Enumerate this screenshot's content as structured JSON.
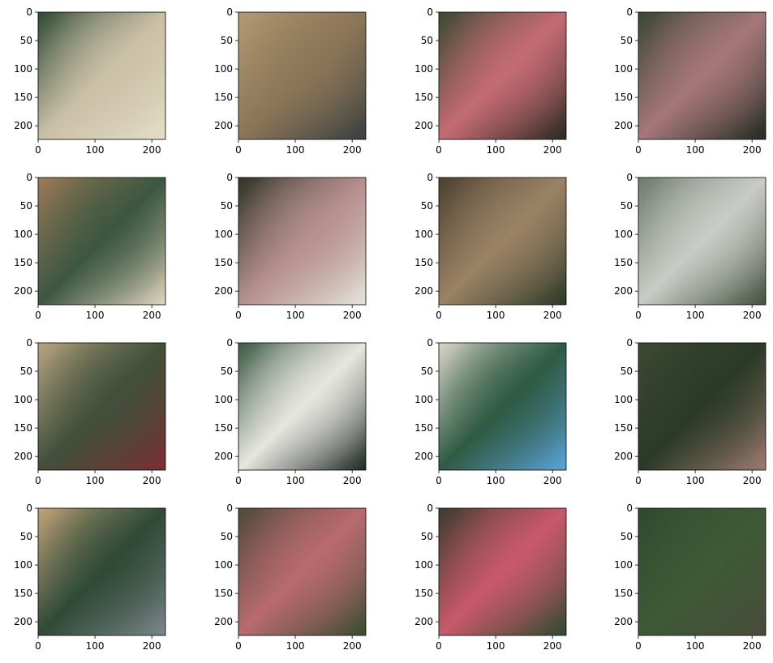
{
  "figure": {
    "title": "",
    "rows": 4,
    "cols": 4
  },
  "chart_data": {
    "type": "image-grid",
    "xlim": [
      0,
      224
    ],
    "ylim": [
      224,
      0
    ],
    "x_ticks": [
      0,
      100,
      200
    ],
    "x_tick_labels": [
      "0",
      "100",
      "200"
    ],
    "y_ticks": [
      0,
      50,
      100,
      150,
      200
    ],
    "y_tick_labels": [
      "0",
      "50",
      "100",
      "150",
      "200"
    ],
    "grid": false,
    "panels": [
      {
        "id": "r0c0",
        "colors": [
          "#2f4a34",
          "#c9c0a6",
          "#e6ddc7"
        ]
      },
      {
        "id": "r0c1",
        "colors": [
          "#b49a72",
          "#8c7658",
          "#3a3f3f"
        ]
      },
      {
        "id": "r0c2",
        "colors": [
          "#3a4a30",
          "#c56b73",
          "#2a2a20"
        ]
      },
      {
        "id": "r0c3",
        "colors": [
          "#394632",
          "#a67778",
          "#222b22"
        ]
      },
      {
        "id": "r1c0",
        "colors": [
          "#9d7a58",
          "#3c5740",
          "#e0d3bd"
        ]
      },
      {
        "id": "r1c1",
        "colors": [
          "#2f3428",
          "#b58f8c",
          "#e5e3da"
        ]
      },
      {
        "id": "r1c2",
        "colors": [
          "#4b4130",
          "#9b8265",
          "#2d3a28"
        ]
      },
      {
        "id": "r1c3",
        "colors": [
          "#6d7a6c",
          "#c9ccc6",
          "#43513f"
        ]
      },
      {
        "id": "r2c0",
        "colors": [
          "#b9a482",
          "#41503a",
          "#7b2e32"
        ]
      },
      {
        "id": "r2c1",
        "colors": [
          "#3b5a44",
          "#e7e6e1",
          "#1f2a22"
        ]
      },
      {
        "id": "r2c2",
        "colors": [
          "#d8d5c8",
          "#2f5a43",
          "#5aa3da"
        ]
      },
      {
        "id": "r2c3",
        "colors": [
          "#3c4a32",
          "#2b3a26",
          "#9d7a70"
        ]
      },
      {
        "id": "r3c0",
        "colors": [
          "#c1a37a",
          "#2f4a36",
          "#7b868a"
        ]
      },
      {
        "id": "r3c1",
        "colors": [
          "#4e4a38",
          "#b96a6e",
          "#3a4c30"
        ]
      },
      {
        "id": "r3c2",
        "colors": [
          "#3a3c2c",
          "#c8596a",
          "#2e4a30"
        ]
      },
      {
        "id": "r3c3",
        "colors": [
          "#2f4a2e",
          "#3d5a36",
          "#4a4a3a"
        ]
      }
    ]
  }
}
